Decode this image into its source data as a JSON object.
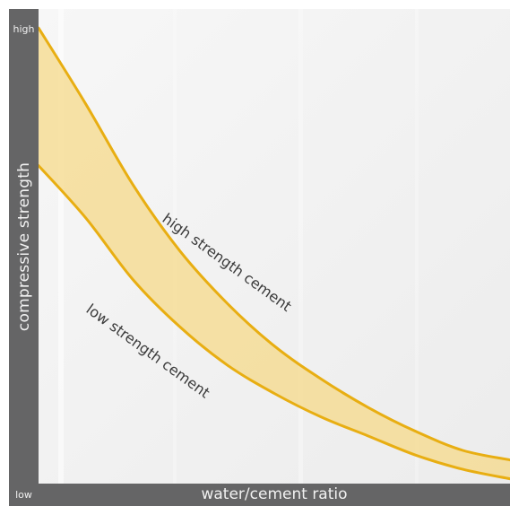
{
  "chart_data": {
    "type": "area",
    "xlabel": "water/cement ratio",
    "ylabel": "compressive strength",
    "y_ticks": [
      "high",
      "low"
    ],
    "grid": false,
    "legend": "none",
    "band_fill_color": "#f6d98a",
    "line_color": "#e8ae12",
    "series": [
      {
        "name": "high strength cement",
        "values": [
          [
            0,
            0.96
          ],
          [
            0.1,
            0.8
          ],
          [
            0.2,
            0.63
          ],
          [
            0.3,
            0.49
          ],
          [
            0.4,
            0.38
          ],
          [
            0.5,
            0.29
          ],
          [
            0.6,
            0.22
          ],
          [
            0.7,
            0.16
          ],
          [
            0.8,
            0.11
          ],
          [
            0.9,
            0.07
          ],
          [
            1.0,
            0.05
          ]
        ]
      },
      {
        "name": "low strength cement",
        "values": [
          [
            0,
            0.67
          ],
          [
            0.1,
            0.56
          ],
          [
            0.2,
            0.43
          ],
          [
            0.3,
            0.33
          ],
          [
            0.4,
            0.25
          ],
          [
            0.5,
            0.19
          ],
          [
            0.6,
            0.14
          ],
          [
            0.7,
            0.1
          ],
          [
            0.8,
            0.06
          ],
          [
            0.9,
            0.03
          ],
          [
            1.0,
            0.01
          ]
        ]
      }
    ]
  }
}
